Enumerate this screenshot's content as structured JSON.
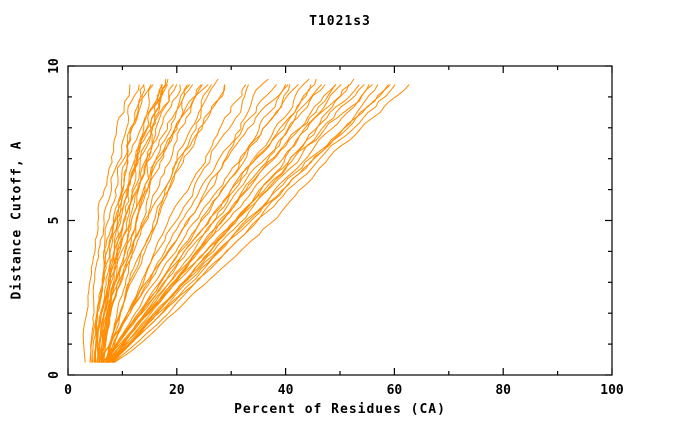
{
  "chart_data": {
    "type": "line",
    "title": "T1021s3",
    "xlabel": "Percent of Residues (CA)",
    "ylabel": "Distance Cutoff, A",
    "xlim": [
      0,
      100
    ],
    "ylim": [
      0,
      10
    ],
    "x_ticks": [
      0,
      20,
      40,
      60,
      80,
      100
    ],
    "y_ticks": [
      0,
      5,
      10
    ],
    "x_minor_step": 10,
    "y_minor_step": 1,
    "grid": false,
    "legend": "none",
    "line_color": "#ff8c00",
    "axis_color": "#000000",
    "y_start": 0.4,
    "y_end": 9.5,
    "series_format": "[percent_at_cutoff_0.4, percent_at_cutoff_9.5, shape_exponent]",
    "series": [
      [
        3.2,
        13,
        1.8
      ],
      [
        4.0,
        13,
        1.6
      ],
      [
        4.2,
        14,
        1.5
      ],
      [
        4.5,
        15,
        1.4
      ],
      [
        5.0,
        15,
        1.7
      ],
      [
        4.8,
        16,
        1.3
      ],
      [
        5.2,
        16,
        1.8
      ],
      [
        5.5,
        17,
        1.5
      ],
      [
        5.0,
        17,
        1.2
      ],
      [
        5.8,
        18,
        1.6
      ],
      [
        6.0,
        18,
        1.4
      ],
      [
        5.4,
        19,
        1.7
      ],
      [
        6.2,
        20,
        1.3
      ],
      [
        5.6,
        20,
        1.5
      ],
      [
        6.5,
        21,
        1.6
      ],
      [
        6.0,
        22,
        1.2
      ],
      [
        6.8,
        22,
        1.8
      ],
      [
        5.9,
        23,
        1.4
      ],
      [
        6.3,
        24,
        1.5
      ],
      [
        7.0,
        25,
        1.3
      ],
      [
        6.6,
        26,
        1.6
      ],
      [
        7.2,
        27,
        1.2
      ],
      [
        6.1,
        28,
        1.5
      ],
      [
        7.5,
        29,
        1.4
      ],
      [
        6.9,
        30,
        1.3
      ],
      [
        7.0,
        33,
        1.1
      ],
      [
        7.4,
        35,
        1.2
      ],
      [
        6.4,
        36,
        1.0
      ],
      [
        5.5,
        38,
        1.0
      ],
      [
        6.0,
        40,
        1.1
      ],
      [
        6.5,
        41,
        0.95
      ],
      [
        7.0,
        42,
        1.05
      ],
      [
        7.5,
        43,
        1.15
      ],
      [
        6.2,
        44,
        0.9
      ],
      [
        6.8,
        45,
        1.0
      ],
      [
        7.2,
        46,
        1.1
      ],
      [
        7.8,
        47,
        0.95
      ],
      [
        6.6,
        48,
        1.05
      ],
      [
        7.1,
        49,
        1.0
      ],
      [
        7.6,
        50,
        0.9
      ],
      [
        8.0,
        51,
        1.1
      ],
      [
        6.9,
        52,
        1.0
      ],
      [
        7.3,
        53,
        0.95
      ],
      [
        7.7,
        54,
        1.05
      ],
      [
        8.2,
        55,
        1.0
      ],
      [
        7.0,
        56,
        0.9
      ],
      [
        7.4,
        57,
        1.1
      ],
      [
        7.9,
        58,
        1.0
      ],
      [
        8.3,
        59,
        0.95
      ],
      [
        7.5,
        60,
        1.05
      ],
      [
        8.0,
        61,
        1.0
      ],
      [
        8.5,
        62,
        0.9
      ]
    ]
  }
}
